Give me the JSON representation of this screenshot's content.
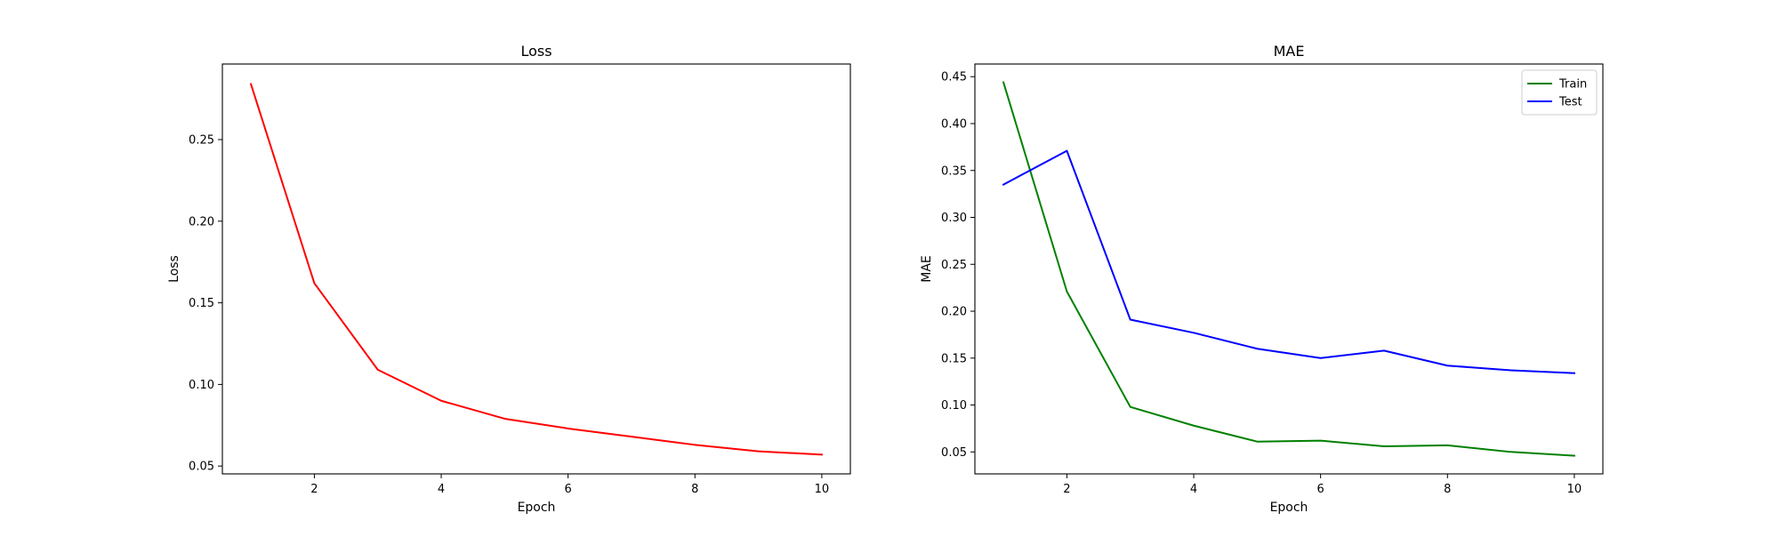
{
  "chart_data": [
    {
      "type": "line",
      "title": "Loss",
      "xlabel": "Epoch",
      "ylabel": "Loss",
      "xlim": [
        0.55,
        10.45
      ],
      "ylim": [
        0.0452,
        0.2963
      ],
      "xticks": [
        2,
        4,
        6,
        8,
        10
      ],
      "yticks": [
        0.05,
        0.1,
        0.15,
        0.2,
        0.25
      ],
      "grid": false,
      "legend": null,
      "x": [
        1,
        2,
        3,
        4,
        5,
        6,
        7,
        8,
        9,
        10
      ],
      "series": [
        {
          "color": "#ff0000",
          "values": [
            0.284,
            0.162,
            0.109,
            0.09,
            0.079,
            0.073,
            0.068,
            0.063,
            0.059,
            0.057
          ]
        }
      ]
    },
    {
      "type": "line",
      "title": "MAE",
      "xlabel": "Epoch",
      "ylabel": "MAE",
      "xlim": [
        0.55,
        10.45
      ],
      "ylim": [
        0.0266,
        0.4635
      ],
      "xticks": [
        2,
        4,
        6,
        8,
        10
      ],
      "yticks": [
        0.05,
        0.1,
        0.15,
        0.2,
        0.25,
        0.3,
        0.35,
        0.4,
        0.45
      ],
      "grid": false,
      "legend": "upper right",
      "x": [
        1,
        2,
        3,
        4,
        5,
        6,
        7,
        8,
        9,
        10
      ],
      "series": [
        {
          "name": "Train",
          "color": "#008000",
          "values": [
            0.444,
            0.221,
            0.098,
            0.078,
            0.061,
            0.062,
            0.056,
            0.057,
            0.05,
            0.046
          ]
        },
        {
          "name": "Test",
          "color": "#0000ff",
          "values": [
            0.335,
            0.371,
            0.191,
            0.177,
            0.16,
            0.15,
            0.158,
            0.142,
            0.137,
            0.134
          ]
        }
      ]
    }
  ]
}
